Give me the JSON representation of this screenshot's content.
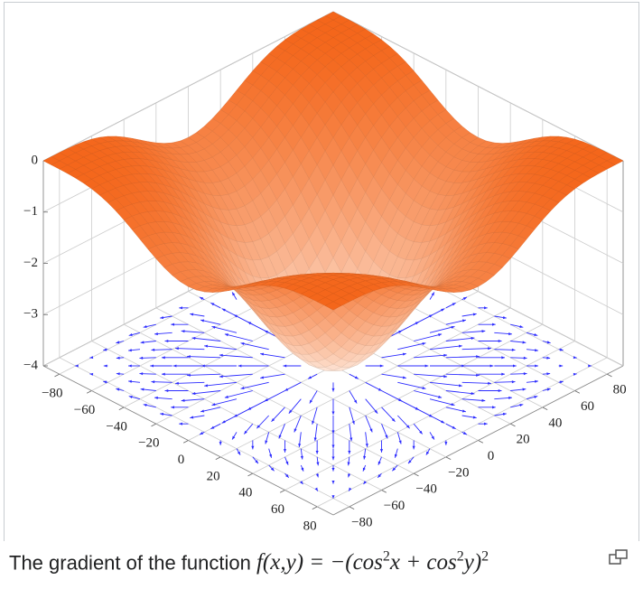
{
  "chart_data": {
    "type": "surface",
    "xlim": [
      -90,
      90
    ],
    "ylim": [
      -90,
      90
    ],
    "zlim": [
      -4,
      0
    ],
    "xticks": [
      {
        "value": -80,
        "label": "−80"
      },
      {
        "value": -60,
        "label": "−60"
      },
      {
        "value": -40,
        "label": "−40"
      },
      {
        "value": -20,
        "label": "−20"
      },
      0,
      20,
      40,
      60,
      80
    ],
    "yticks": [
      {
        "value": -80,
        "label": "−80"
      },
      {
        "value": -60,
        "label": "−60"
      },
      {
        "value": -40,
        "label": "−40"
      },
      {
        "value": -20,
        "label": "−20"
      },
      0,
      20,
      40,
      60,
      80
    ],
    "zticks": [
      {
        "value": -4,
        "label": "−4"
      },
      {
        "value": -3,
        "label": "−3"
      },
      {
        "value": -2,
        "label": "−2"
      },
      {
        "value": -1,
        "label": "−1"
      },
      0
    ],
    "surface_color": "#f4661b",
    "arrow_color": "#2b2bff",
    "grid": true
  },
  "caption": {
    "text": "The gradient of the function",
    "formula": [
      "f(x,y) = −(cos",
      "2",
      "x + cos",
      "2",
      "y)",
      "2"
    ]
  }
}
